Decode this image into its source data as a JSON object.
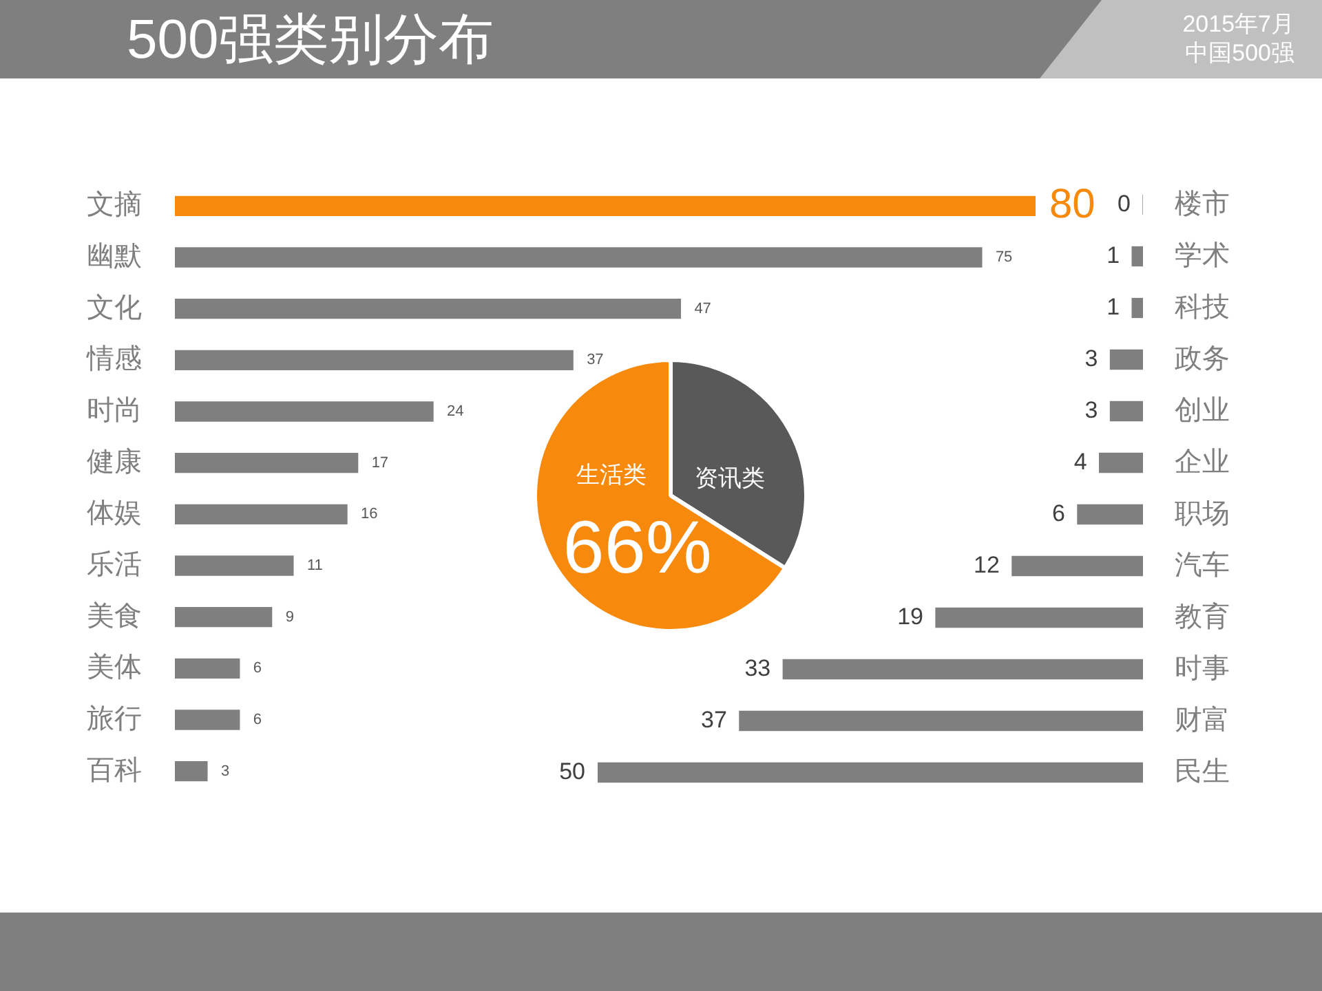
{
  "chart_data": [
    {
      "type": "bar",
      "orientation": "horizontal",
      "title": "500强类别分布",
      "annotations": [
        "2015年7月",
        "中国500强"
      ],
      "categories": [
        "文摘",
        "幽默",
        "文化",
        "情感",
        "时尚",
        "健康",
        "体娱",
        "乐活",
        "美食",
        "美体",
        "旅行",
        "百科"
      ],
      "values": [
        80,
        75,
        47,
        37,
        24,
        17,
        16,
        11,
        9,
        6,
        6,
        3
      ],
      "colors": [
        "#f7890c",
        "#7f7f7f",
        "#7f7f7f",
        "#7f7f7f",
        "#7f7f7f",
        "#7f7f7f",
        "#7f7f7f",
        "#7f7f7f",
        "#7f7f7f",
        "#7f7f7f",
        "#7f7f7f",
        "#7f7f7f"
      ],
      "xlim": [
        0,
        80
      ],
      "tick_labels": "y",
      "data_labels": true
    },
    {
      "type": "bar",
      "orientation": "horizontal",
      "categories": [
        "楼市",
        "学术",
        "科技",
        "政务",
        "创业",
        "企业",
        "职场",
        "汽车",
        "教育",
        "时事",
        "财富",
        "民生"
      ],
      "values": [
        0,
        1,
        1,
        3,
        3,
        4,
        6,
        12,
        19,
        33,
        37,
        50
      ],
      "color": "#7f7f7f",
      "xlim": [
        50,
        0
      ],
      "tick_labels": "y",
      "data_labels": true
    },
    {
      "type": "pie",
      "categories": [
        "资讯类",
        "生活类"
      ],
      "values": [
        34,
        66
      ],
      "colors": [
        "#595959",
        "#f7890c"
      ],
      "value_labels": [
        null,
        "66%"
      ]
    }
  ]
}
